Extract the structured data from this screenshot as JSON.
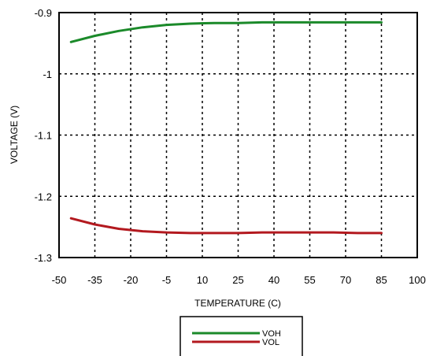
{
  "chart_data": {
    "type": "line",
    "xlabel": "TEMPERATURE (C)",
    "ylabel": "VOLTAGE (V)",
    "xlim": [
      -50,
      100
    ],
    "ylim": [
      -1.3,
      -0.9
    ],
    "x_ticks": [
      -50,
      -35,
      -20,
      -5,
      10,
      25,
      40,
      55,
      70,
      85,
      100
    ],
    "x_tick_labels": [
      "-50",
      "-35",
      "-20",
      "-5",
      "10",
      "25",
      "40",
      "55",
      "70",
      "85",
      "100"
    ],
    "y_ticks": [
      -0.9,
      -1.0,
      -1.1,
      -1.2,
      -1.3
    ],
    "y_tick_labels": [
      "-0.9",
      "-1",
      "-1.1",
      "-1.2",
      "-1.3"
    ],
    "grid": true,
    "legend_position": "bottom-center",
    "series": [
      {
        "name": "VOH",
        "color": "#1b8a2a",
        "x": [
          -45,
          -35,
          -25,
          -15,
          -5,
          5,
          15,
          25,
          35,
          45,
          55,
          65,
          75,
          85
        ],
        "y": [
          -0.948,
          -0.938,
          -0.93,
          -0.924,
          -0.92,
          -0.918,
          -0.917,
          -0.917,
          -0.916,
          -0.916,
          -0.916,
          -0.916,
          -0.916,
          -0.916
        ]
      },
      {
        "name": "VOL",
        "color": "#b3191f",
        "x": [
          -45,
          -35,
          -25,
          -15,
          -5,
          5,
          15,
          25,
          35,
          45,
          55,
          65,
          75,
          85
        ],
        "y": [
          -1.236,
          -1.246,
          -1.253,
          -1.257,
          -1.259,
          -1.26,
          -1.26,
          -1.26,
          -1.259,
          -1.259,
          -1.259,
          -1.259,
          -1.26,
          -1.26
        ]
      }
    ]
  }
}
